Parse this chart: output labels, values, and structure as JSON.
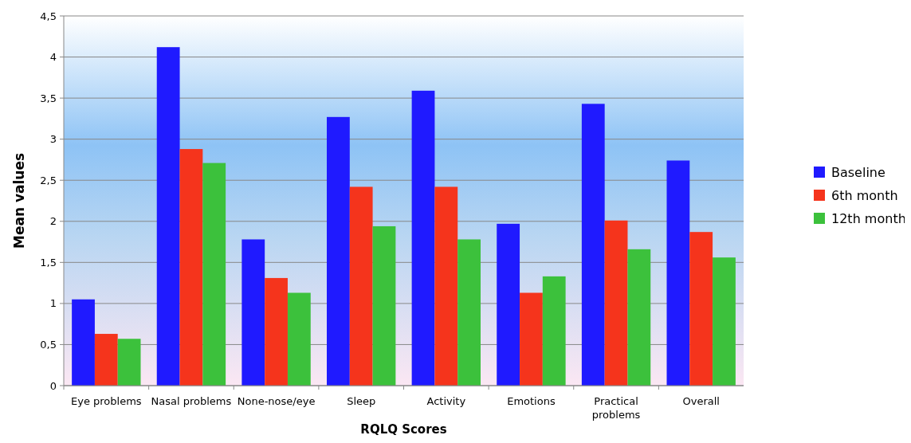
{
  "chart_data": {
    "type": "bar",
    "xlabel": "RQLQ Scores",
    "ylabel": "Mean values",
    "categories": [
      "Eye problems",
      "Nasal problems",
      "None-nose/eye",
      "Sleep",
      "Activity",
      "Emotions",
      "Practical problems",
      "Overall"
    ],
    "series": [
      {
        "name": "Baseline",
        "color": "#1f1aff",
        "values": [
          1.05,
          4.12,
          1.78,
          3.27,
          3.59,
          1.97,
          3.43,
          2.74
        ]
      },
      {
        "name": "6th month",
        "color": "#f5341c",
        "values": [
          0.63,
          2.88,
          1.31,
          2.42,
          2.42,
          1.13,
          2.01,
          1.87
        ]
      },
      {
        "name": "12th month",
        "color": "#3cc13c",
        "values": [
          0.57,
          2.71,
          1.13,
          1.94,
          1.78,
          1.33,
          1.66,
          1.56
        ]
      }
    ],
    "ylim": [
      0,
      4.5
    ],
    "yticks": [
      0,
      {
        "value": 0.5,
        "label": "0,5"
      },
      1,
      {
        "value": 1.5,
        "label": "1,5"
      },
      2,
      {
        "value": 2.5,
        "label": "2,5"
      },
      3,
      {
        "value": 3.5,
        "label": "3,5"
      },
      4,
      {
        "value": 4.5,
        "label": "4,5"
      }
    ],
    "grid": "y",
    "legend": "right"
  }
}
